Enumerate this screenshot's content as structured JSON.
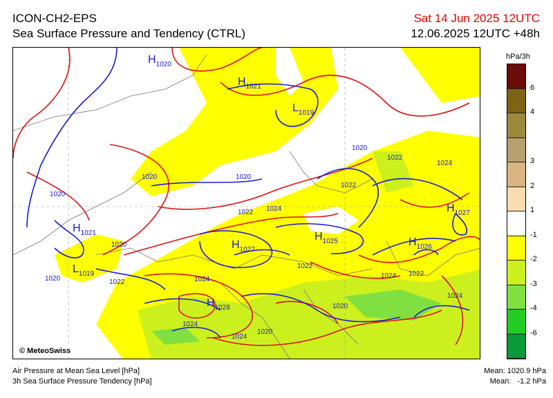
{
  "header": {
    "model": "ICON-CH2-EPS",
    "product": "Sea Surface Pressure and Tendency (CTRL)",
    "valid_time": "Sat 14 Jun 2025 12UTC",
    "run_time": "12.06.2025 12UTC +48h"
  },
  "map": {
    "logo": "© MeteoSwiss",
    "pressure_centers": [
      {
        "type": "H",
        "value": "1020"
      },
      {
        "type": "H",
        "value": "1021"
      },
      {
        "type": "L",
        "value": "1019"
      },
      {
        "type": "H",
        "value": "1021"
      },
      {
        "type": "L",
        "value": "1019"
      },
      {
        "type": "H",
        "value": "1027"
      },
      {
        "type": "H",
        "value": "1025"
      },
      {
        "type": "H",
        "value": "1026"
      },
      {
        "type": "H",
        "value": "1027"
      },
      {
        "type": "H",
        "value": "1028"
      }
    ],
    "isobar_labels": [
      "1020",
      "1020",
      "1020",
      "1020",
      "1022",
      "1024",
      "1020",
      "1022",
      "1022",
      "1024",
      "1020",
      "1024",
      "1024",
      "1022",
      "1024",
      "1022",
      "1024",
      "1020",
      "1022",
      "1020",
      "1024"
    ]
  },
  "legend": {
    "unit": "hPa/3h",
    "bins": [
      {
        "color": "#6b0c08",
        "label": "6"
      },
      {
        "color": "#7d6414",
        "label": "4"
      },
      {
        "color": "#9c8a3c",
        "label": ""
      },
      {
        "color": "#b6a06e",
        "label": "3"
      },
      {
        "color": "#d8b581",
        "label": "2"
      },
      {
        "color": "#fddcb0",
        "label": "1"
      },
      {
        "color": "#ffffff",
        "label": "-1"
      },
      {
        "color": "#ffff00",
        "label": "-2"
      },
      {
        "color": "#ccf01e",
        "label": "-3"
      },
      {
        "color": "#80e040",
        "label": "-4"
      },
      {
        "color": "#22cc22",
        "label": "-6"
      },
      {
        "color": "#0a9a3a",
        "label": ""
      }
    ]
  },
  "footer": {
    "line1": "Air Pressure at Mean Sea Level [hPa]",
    "line2": "3h Sea Surface Pressure Tendency [hPa]",
    "mean_pressure": "Mean: 1020.9 hPa",
    "mean_tendency": "Mean:   -1.2 hPa"
  },
  "colors": {
    "isobar_low": "#e01010",
    "isobar_high": "#1a1ad0",
    "title_date": "#e60000"
  }
}
